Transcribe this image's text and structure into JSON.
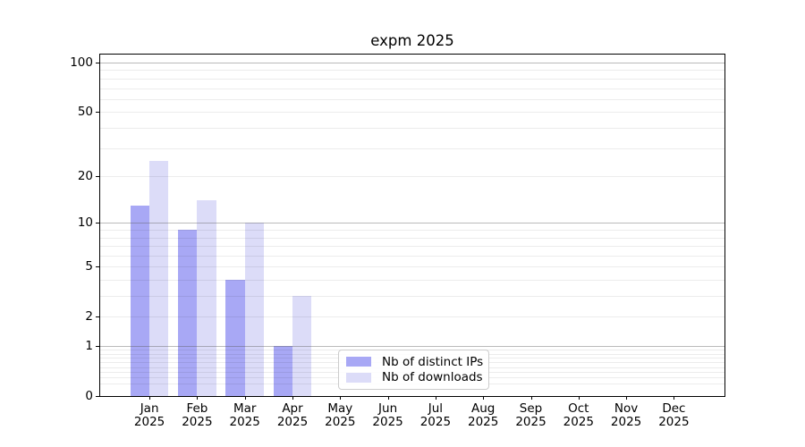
{
  "chart_data": {
    "type": "bar",
    "title": "expm 2025",
    "categories": [
      "Jan",
      "Feb",
      "Mar",
      "Apr",
      "May",
      "Jun",
      "Jul",
      "Aug",
      "Sep",
      "Oct",
      "Nov",
      "Dec"
    ],
    "category_year_line": "2025",
    "series": [
      {
        "name": "Nb of distinct IPs",
        "color": "#a8a8f5",
        "values": [
          13,
          9,
          4,
          1,
          null,
          null,
          null,
          null,
          null,
          null,
          null,
          null
        ]
      },
      {
        "name": "Nb of downloads",
        "color": "#dcdcf8",
        "values": [
          25,
          14,
          10,
          3,
          null,
          null,
          null,
          null,
          null,
          null,
          null,
          null
        ]
      }
    ],
    "y_axis": {
      "scale": "log1p",
      "labeled_ticks": [
        0,
        1,
        2,
        5,
        10,
        20,
        50,
        100
      ],
      "major_gridlines": [
        1,
        10,
        100
      ],
      "minor_gridlines": [
        0.2,
        0.3,
        0.4,
        0.5,
        0.6,
        0.7,
        0.8,
        0.9,
        2,
        3,
        4,
        5,
        6,
        7,
        8,
        9,
        20,
        30,
        40,
        50,
        60,
        70,
        80,
        90
      ],
      "ylim": [
        0,
        115
      ]
    },
    "x_axis": {
      "label_lines": 2,
      "tick_count": 12
    },
    "legend": {
      "position": "lower center",
      "border_color": "#cccccc"
    },
    "grid": true,
    "colors": {
      "background": "#ffffff",
      "spine": "#000000",
      "major_grid": "#b0b0b0",
      "minor_grid": "#ebebeb"
    }
  }
}
